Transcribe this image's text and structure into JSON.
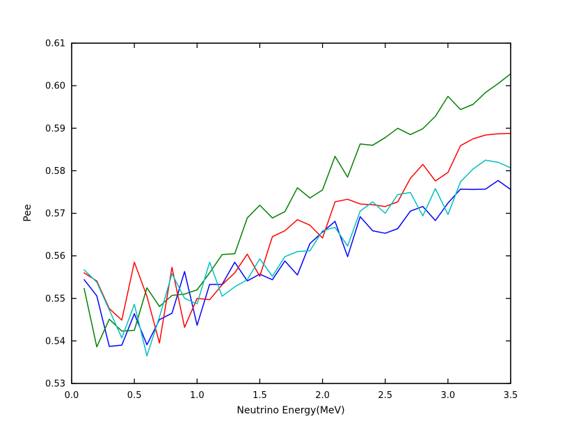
{
  "figure": {
    "background": "#ffffff",
    "frame_color": "#000000"
  },
  "chart_data": {
    "type": "line",
    "title": "",
    "xlabel": "Neutrino Energy(MeV)",
    "ylabel": "Pee",
    "xlim": [
      0.0,
      3.5
    ],
    "ylim": [
      0.53,
      0.61
    ],
    "grid": false,
    "legend": "none",
    "x_tick_labels": [
      "0.0",
      "0.5",
      "1.0",
      "1.5",
      "2.0",
      "2.5",
      "3.0",
      "3.5"
    ],
    "x_tick_values": [
      0.0,
      0.5,
      1.0,
      1.5,
      2.0,
      2.5,
      3.0,
      3.5
    ],
    "y_tick_labels": [
      "0.53",
      "0.54",
      "0.55",
      "0.56",
      "0.57",
      "0.58",
      "0.59",
      "0.60",
      "0.61"
    ],
    "y_tick_values": [
      0.53,
      0.54,
      0.55,
      0.56,
      0.57,
      0.58,
      0.59,
      0.6,
      0.61
    ],
    "x": [
      0.1,
      0.2,
      0.3,
      0.4,
      0.5,
      0.6,
      0.7,
      0.8,
      0.9,
      1.0,
      1.1,
      1.2,
      1.3,
      1.4,
      1.5,
      1.6,
      1.7,
      1.8,
      1.9,
      2.0,
      2.1,
      2.2,
      2.3,
      2.4,
      2.5,
      2.6,
      2.7,
      2.8,
      2.9,
      3.0,
      3.1,
      3.2,
      3.3,
      3.4,
      3.5
    ],
    "series": [
      {
        "name": "blue",
        "color": "#0000ff",
        "values": [
          0.5544,
          0.5506,
          0.5387,
          0.539,
          0.5464,
          0.5391,
          0.545,
          0.5465,
          0.5563,
          0.5437,
          0.5533,
          0.5533,
          0.5585,
          0.5541,
          0.5557,
          0.5544,
          0.5588,
          0.5555,
          0.5629,
          0.5656,
          0.5681,
          0.5598,
          0.5692,
          0.5659,
          0.5653,
          0.5664,
          0.5705,
          0.5716,
          0.5683,
          0.5724,
          0.5757,
          0.5756,
          0.5757,
          0.5777,
          0.5756
        ]
      },
      {
        "name": "green",
        "color": "#008000",
        "values": [
          0.5523,
          0.5386,
          0.5451,
          0.5423,
          0.5425,
          0.5525,
          0.5481,
          0.5507,
          0.551,
          0.552,
          0.556,
          0.5603,
          0.5605,
          0.5689,
          0.5719,
          0.5689,
          0.5704,
          0.576,
          0.5736,
          0.5755,
          0.5834,
          0.5785,
          0.5863,
          0.586,
          0.5878,
          0.59,
          0.5885,
          0.5899,
          0.5928,
          0.5975,
          0.5944,
          0.5956,
          0.5984,
          0.6005,
          0.6028
        ]
      },
      {
        "name": "red",
        "color": "#ff0000",
        "values": [
          0.556,
          0.5541,
          0.5476,
          0.5449,
          0.5585,
          0.5505,
          0.5395,
          0.5573,
          0.5432,
          0.55,
          0.5497,
          0.5532,
          0.556,
          0.5604,
          0.5552,
          0.5645,
          0.5659,
          0.5685,
          0.5672,
          0.5642,
          0.5727,
          0.5733,
          0.5722,
          0.572,
          0.5716,
          0.5727,
          0.5782,
          0.5815,
          0.5776,
          0.5796,
          0.5859,
          0.5875,
          0.5884,
          0.5887,
          0.5888
        ]
      },
      {
        "name": "cyan",
        "color": "#00bfbf",
        "values": [
          0.5567,
          0.5538,
          0.5473,
          0.5407,
          0.5486,
          0.5365,
          0.5456,
          0.5558,
          0.55,
          0.5487,
          0.5585,
          0.5505,
          0.5527,
          0.5544,
          0.5593,
          0.5552,
          0.5598,
          0.561,
          0.5612,
          0.5659,
          0.5667,
          0.5623,
          0.5705,
          0.5727,
          0.57,
          0.5744,
          0.5749,
          0.5694,
          0.5758,
          0.5697,
          0.5774,
          0.5804,
          0.5825,
          0.582,
          0.5807
        ]
      }
    ]
  }
}
